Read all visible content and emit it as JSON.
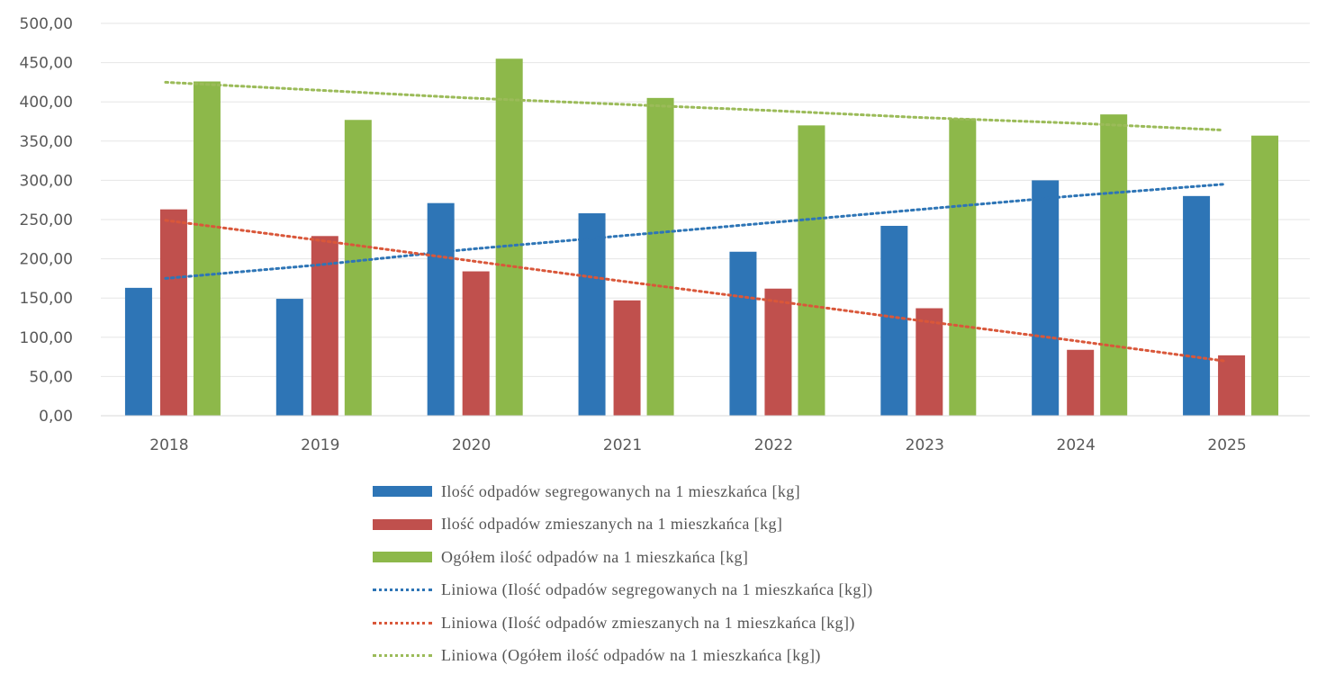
{
  "chart_data": {
    "type": "bar",
    "categories": [
      "2018",
      "2019",
      "2020",
      "2021",
      "2022",
      "2023",
      "2024",
      "2025"
    ],
    "y_tick_labels": [
      "0,00",
      "50,00",
      "100,00",
      "150,00",
      "200,00",
      "250,00",
      "300,00",
      "350,00",
      "400,00",
      "450,00",
      "500,00"
    ],
    "ylim": [
      0,
      500
    ],
    "grid": true,
    "legend_position": "bottom",
    "series": [
      {
        "name": "Ilość odpadów segregowanych na 1 mieszkańca [kg]",
        "color": "#2E75B6",
        "values": [
          163,
          149,
          271,
          258,
          209,
          242,
          300,
          280
        ]
      },
      {
        "name": "Ilość odpadów zmieszanych na 1 mieszkańca [kg]",
        "color": "#C0504D",
        "values": [
          263,
          229,
          184,
          147,
          162,
          137,
          84,
          77
        ]
      },
      {
        "name": "Ogółem ilość odpadów na 1 mieszkańca  [kg]",
        "color": "#8DB84A",
        "values": [
          426,
          377,
          455,
          405,
          370,
          379,
          384,
          357
        ]
      }
    ],
    "trendlines": [
      {
        "name": "Liniowa (Ilość odpadów segregowanych na 1 mieszkańca [kg])",
        "color": "#2E75B6",
        "values": [
          175,
          192,
          212,
          229,
          246,
          263,
          280,
          295
        ]
      },
      {
        "name": "Liniowa (Ilość odpadów zmieszanych na 1 mieszkańca [kg])",
        "color": "#D9573A",
        "values": [
          249,
          224,
          198,
          172,
          147,
          121,
          96,
          70
        ]
      },
      {
        "name": "Liniowa (Ogółem ilość odpadów na 1 mieszkańca  [kg])",
        "color": "#9BBB59",
        "values": [
          425,
          415,
          405,
          397,
          389,
          380,
          373,
          364
        ]
      }
    ]
  }
}
